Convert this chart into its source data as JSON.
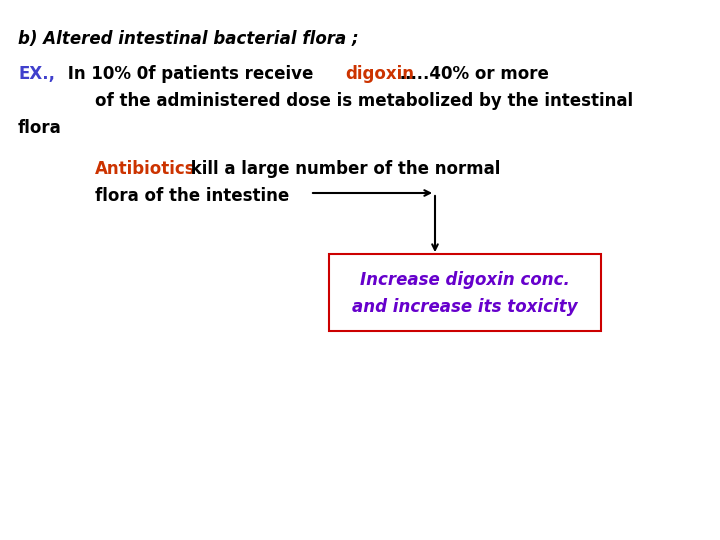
{
  "bg_color": "#ffffff",
  "title_text": "b) Altered intestinal bacterial flora ;",
  "title_color": "#000000",
  "ex_label": "EX.,",
  "ex_color": "#4040cc",
  "line1_pre": " In 10% 0f patients receive ",
  "line1_digoxin": "digoxin",
  "line1_digoxin_color": "#cc3300",
  "line1_post": "…..40% or more",
  "line2": "of the administered dose is metabolized by the intestinal",
  "line3": "flora",
  "antibiotics_label": "Antibiotics",
  "antibiotics_color": "#cc3300",
  "antibiotics_rest": " kill a large number of the normal",
  "flora_line": "flora of the intestine",
  "box_text_line1": "Increase digoxin conc.",
  "box_text_line2": "and increase its toxicity",
  "box_text_color": "#6600cc",
  "box_edge_color": "#cc0000",
  "text_color": "#000000",
  "font_size": 12,
  "title_font_size": 12
}
